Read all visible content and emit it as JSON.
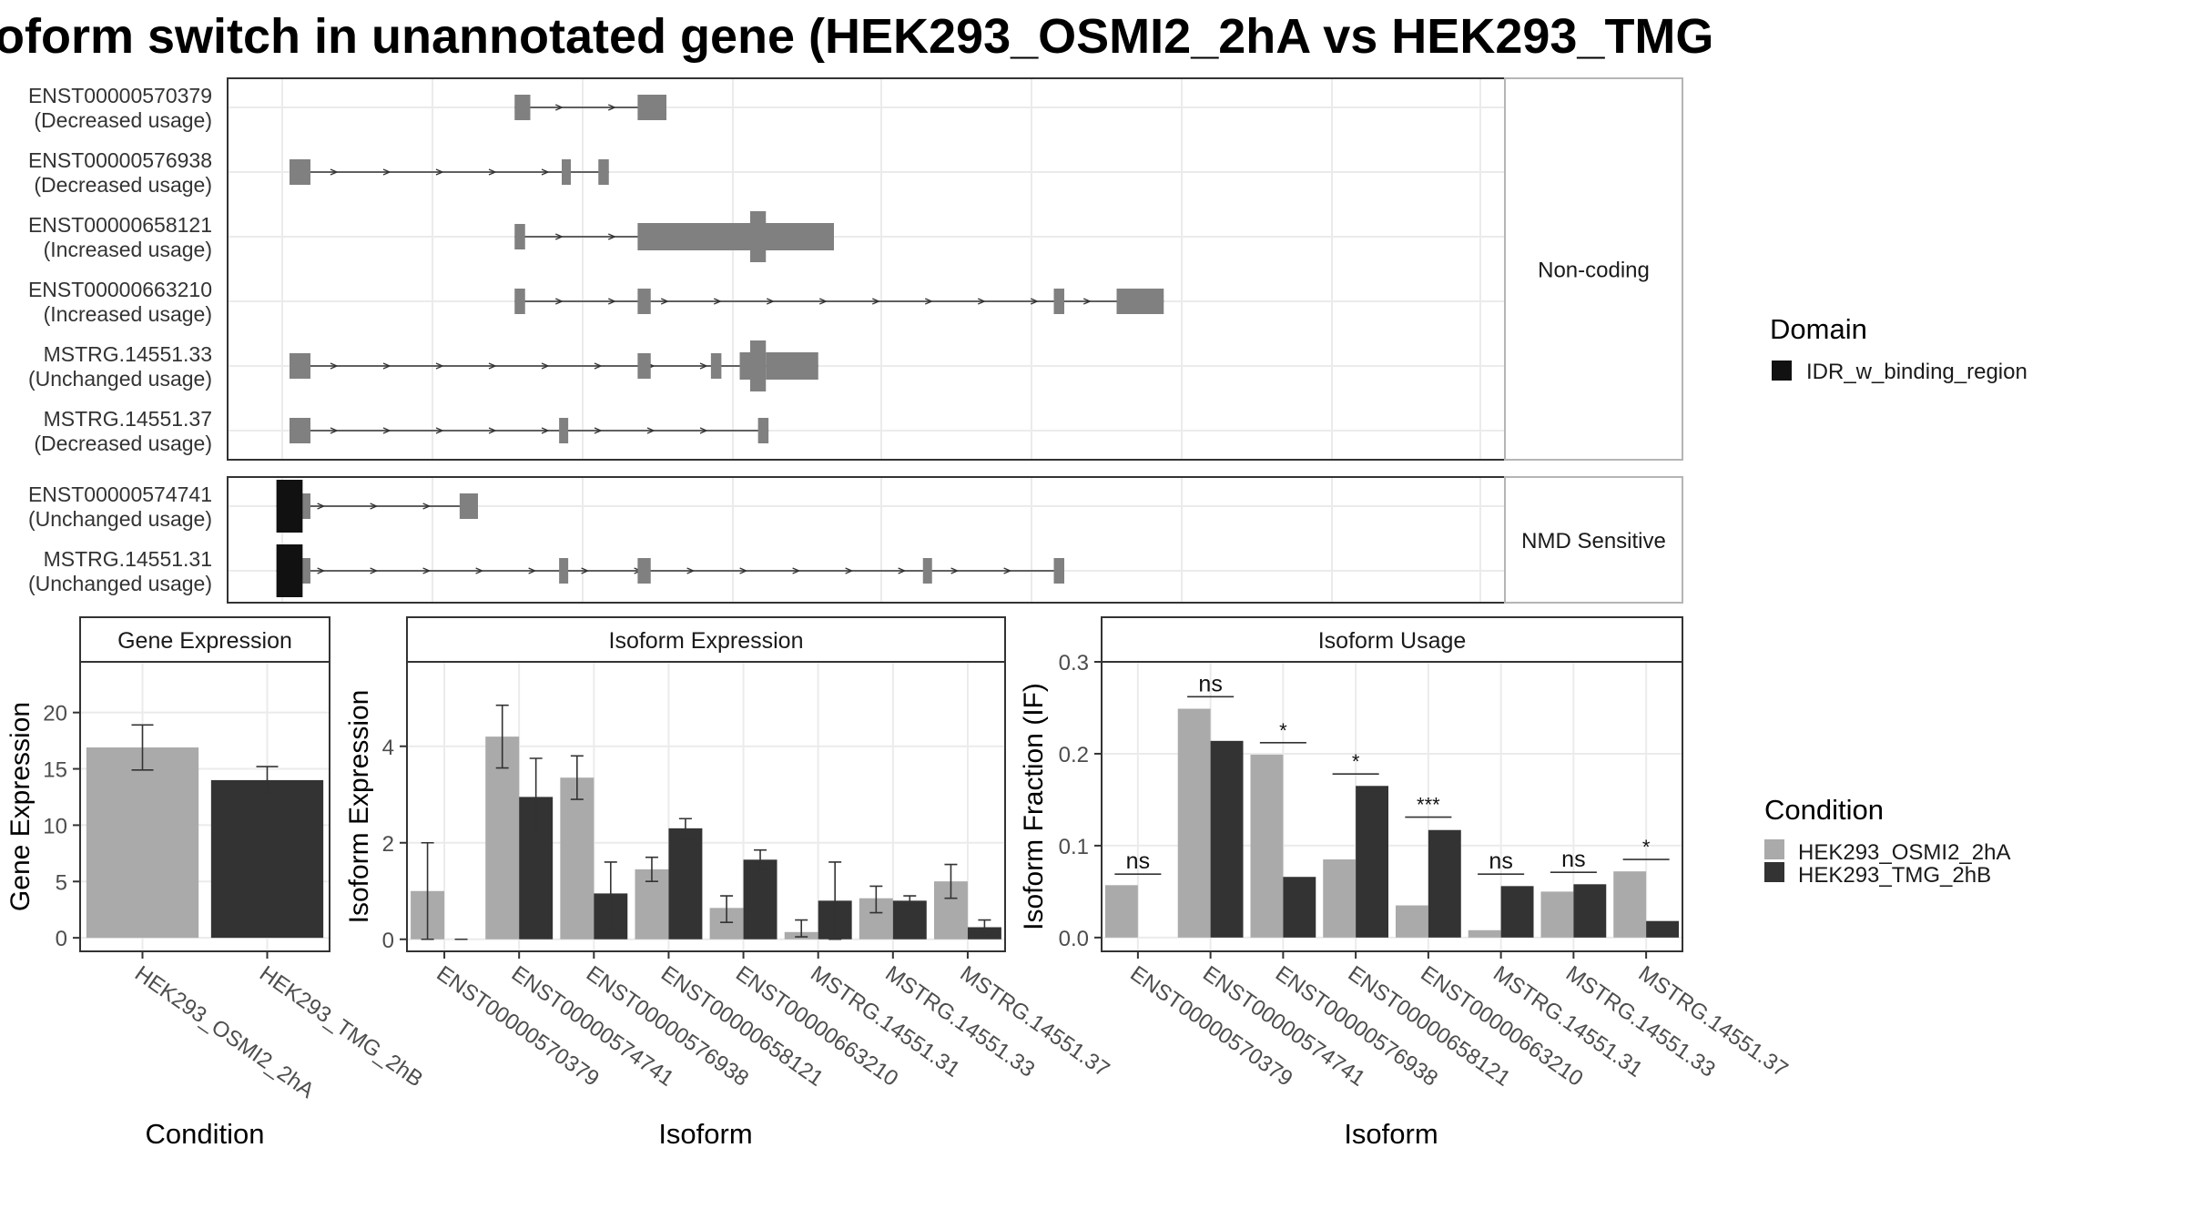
{
  "title": "oform switch in unannotated gene (HEK293_OSMI2_2hA vs HEK293_TMG",
  "colors": {
    "exon": "#808080",
    "domain": "#111111",
    "cond_a": "#aaaaaa",
    "cond_b": "#333333",
    "panel_border": "#333333",
    "strip_fill": "#ffffff",
    "grid": "#ebebeb"
  },
  "legends": {
    "domain": {
      "title": "Domain",
      "items": [
        {
          "label": "IDR_w_binding_region",
          "color": "#111111"
        }
      ]
    },
    "condition": {
      "title": "Condition",
      "items": [
        {
          "label": "HEK293_OSMI2_2hA",
          "color": "#aaaaaa"
        },
        {
          "label": "HEK293_TMG_2hB",
          "color": "#333333"
        }
      ]
    }
  },
  "chart_data": [
    {
      "type": "transcript_structure",
      "facets": [
        {
          "label": "Non-coding",
          "transcripts": [
            {
              "id": "ENST00000570379",
              "status": "(Decreased usage)",
              "exons": [
                [
                  0.47,
                  0.5,
                  "n"
                ],
                [
                  0.705,
                  0.76,
                  "n"
                ]
              ],
              "domains": []
            },
            {
              "id": "ENST00000576938",
              "status": "(Decreased usage)",
              "exons": [
                [
                  0.04,
                  0.08,
                  "n"
                ],
                [
                  0.56,
                  0.575,
                  "n"
                ],
                [
                  0.63,
                  0.65,
                  "n"
                ]
              ],
              "domains": []
            },
            {
              "id": "ENST00000658121",
              "status": "(Increased usage)",
              "exons": [
                [
                  0.47,
                  0.49,
                  "n"
                ],
                [
                  0.705,
                  0.98,
                  "w"
                ],
                [
                  0.92,
                  0.95,
                  "x"
                ],
                [
                  0.95,
                  1.08,
                  "w"
                ]
              ],
              "domains": []
            },
            {
              "id": "ENST00000663210",
              "status": "(Increased usage)",
              "exons": [
                [
                  0.47,
                  0.49,
                  "n"
                ],
                [
                  0.705,
                  0.73,
                  "n"
                ],
                [
                  1.5,
                  1.52,
                  "n"
                ],
                [
                  1.62,
                  1.71,
                  "n"
                ]
              ],
              "domains": []
            },
            {
              "id": "MSTRG.14551.33",
              "status": "(Unchanged usage)",
              "exons": [
                [
                  0.04,
                  0.08,
                  "n"
                ],
                [
                  0.705,
                  0.73,
                  "n"
                ],
                [
                  0.845,
                  0.865,
                  "n"
                ],
                [
                  0.9,
                  0.92,
                  "w"
                ],
                [
                  0.92,
                  0.95,
                  "x"
                ],
                [
                  0.95,
                  1.05,
                  "w"
                ]
              ],
              "domains": []
            },
            {
              "id": "MSTRG.14551.37",
              "status": "(Decreased usage)",
              "exons": [
                [
                  0.04,
                  0.08,
                  "n"
                ],
                [
                  0.555,
                  0.57,
                  "n"
                ],
                [
                  0.935,
                  0.955,
                  "n"
                ]
              ],
              "domains": []
            }
          ]
        },
        {
          "label": "NMD Sensitive",
          "transcripts": [
            {
              "id": "ENST00000574741",
              "status": "(Unchanged usage)",
              "exons": [
                [
                  0.06,
                  0.08,
                  "n"
                ],
                [
                  0.365,
                  0.4,
                  "n"
                ]
              ],
              "domains": [
                [
                  0.015,
                  0.065
                ]
              ]
            },
            {
              "id": "MSTRG.14551.31",
              "status": "(Unchanged usage)",
              "exons": [
                [
                  0.06,
                  0.08,
                  "n"
                ],
                [
                  0.555,
                  0.57,
                  "n"
                ],
                [
                  0.705,
                  0.73,
                  "n"
                ],
                [
                  1.25,
                  1.265,
                  "n"
                ],
                [
                  1.5,
                  1.52,
                  "n"
                ]
              ],
              "domains": [
                [
                  0.015,
                  0.065
                ]
              ]
            }
          ]
        }
      ]
    },
    {
      "type": "bar",
      "title": "Gene Expression",
      "xlabel": "Condition",
      "ylabel": "Gene Expression",
      "ylim": [
        -1.2,
        24.5
      ],
      "yticks": [
        0,
        5,
        10,
        15,
        20
      ],
      "categories": [
        "HEK293_OSMI2_2hA",
        "HEK293_TMG_2hB"
      ],
      "values": [
        16.9,
        14.0
      ],
      "errors": [
        [
          14.9,
          18.9
        ],
        [
          12.8,
          15.2
        ]
      ]
    },
    {
      "type": "bar",
      "title": "Isoform Expression",
      "xlabel": "Isoform",
      "ylabel": "Isoform Expression",
      "ylim": [
        -0.25,
        5.75
      ],
      "yticks": [
        0,
        2,
        4
      ],
      "categories": [
        "ENST00000570379",
        "ENST00000574741",
        "ENST00000576938",
        "ENST00000658121",
        "ENST00000663210",
        "MSTRG.14551.31",
        "MSTRG.14551.33",
        "MSTRG.14551.37"
      ],
      "series": [
        {
          "name": "HEK293_OSMI2_2hA",
          "values": [
            1.0,
            4.2,
            3.35,
            1.45,
            0.65,
            0.15,
            0.85,
            1.2
          ],
          "errors": [
            [
              0,
              2.0
            ],
            [
              3.55,
              4.85
            ],
            [
              2.9,
              3.8
            ],
            [
              1.2,
              1.7
            ],
            [
              0.35,
              0.9
            ],
            [
              0.05,
              0.4
            ],
            [
              0.55,
              1.1
            ],
            [
              0.85,
              1.55
            ]
          ]
        },
        {
          "name": "HEK293_TMG_2hB",
          "values": [
            0.0,
            2.95,
            0.95,
            2.3,
            1.65,
            0.8,
            0.8,
            0.25
          ],
          "errors": [
            [
              0,
              0
            ],
            [
              2.15,
              3.75
            ],
            [
              0.25,
              1.6
            ],
            [
              2.1,
              2.5
            ],
            [
              1.45,
              1.85
            ],
            [
              0,
              1.6
            ],
            [
              0.7,
              0.9
            ],
            [
              0.1,
              0.4
            ]
          ]
        }
      ]
    },
    {
      "type": "bar",
      "title": "Isoform Usage",
      "xlabel": "Isoform",
      "ylabel": "Isoform Fraction (IF)",
      "ylim": [
        -0.015,
        0.3
      ],
      "yticks": [
        0.0,
        0.1,
        0.2,
        0.3
      ],
      "ytick_labels": [
        "0.0",
        "0.1",
        "0.2",
        "0.3"
      ],
      "categories": [
        "ENST00000570379",
        "ENST00000574741",
        "ENST00000576938",
        "ENST00000658121",
        "ENST00000663210",
        "MSTRG.14551.31",
        "MSTRG.14551.33",
        "MSTRG.14551.37"
      ],
      "series": [
        {
          "name": "HEK293_OSMI2_2hA",
          "values": [
            0.057,
            0.249,
            0.199,
            0.085,
            0.035,
            0.008,
            0.05,
            0.072
          ]
        },
        {
          "name": "HEK293_TMG_2hB",
          "values": [
            0.0,
            0.214,
            0.066,
            0.165,
            0.117,
            0.056,
            0.058,
            0.018
          ]
        }
      ],
      "significance": [
        {
          "label": "ns",
          "y": 0.069
        },
        {
          "label": "ns",
          "y": 0.262
        },
        {
          "label": "*",
          "y": 0.212
        },
        {
          "label": "*",
          "y": 0.178
        },
        {
          "label": "***",
          "y": 0.131
        },
        {
          "label": "ns",
          "y": 0.069
        },
        {
          "label": "ns",
          "y": 0.071
        },
        {
          "label": "*",
          "y": 0.085
        }
      ]
    }
  ]
}
